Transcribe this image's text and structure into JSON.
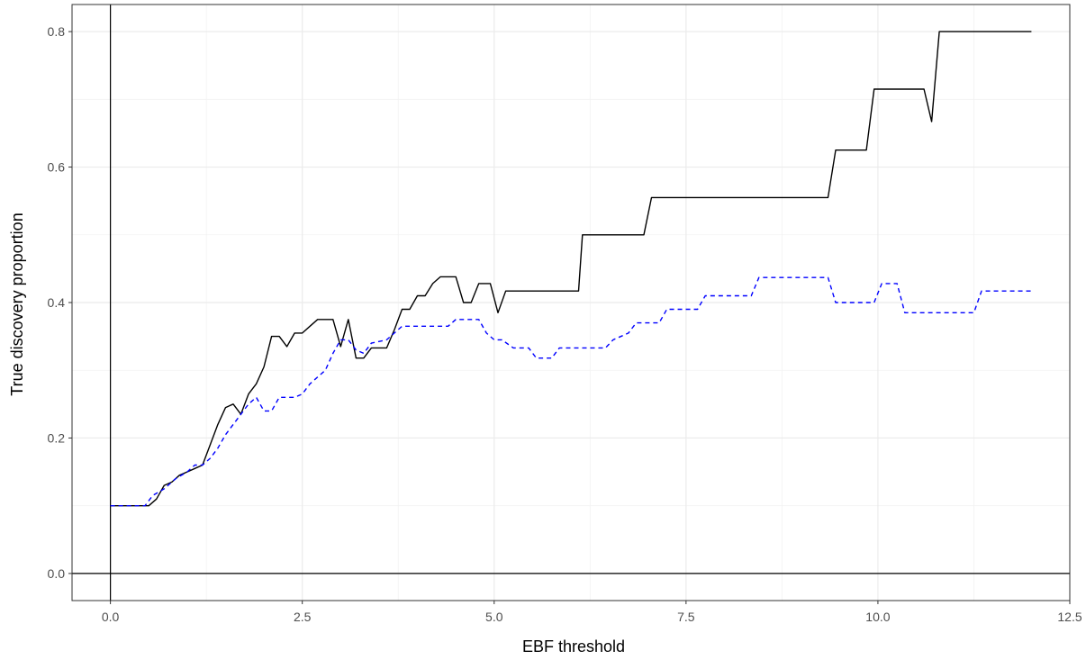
{
  "chart_data": {
    "type": "line",
    "xlabel": "EBF threshold",
    "ylabel": "True discovery proportion",
    "xlim": [
      -0.5,
      12.5
    ],
    "ylim": [
      -0.04,
      0.84
    ],
    "x_ticks": [
      0,
      2.5,
      5,
      7.5,
      10,
      12.5
    ],
    "x_tick_labels": [
      "0.0",
      "2.5",
      "5.0",
      "7.5",
      "10.0",
      "12.5"
    ],
    "y_ticks": [
      0,
      0.2,
      0.4,
      0.6,
      0.8
    ],
    "y_tick_labels": [
      "0.0",
      "0.2",
      "0.4",
      "0.6",
      "0.8"
    ],
    "grid": true,
    "reference_lines": {
      "vertical_x": 0,
      "horizontal_y": 0
    },
    "series": [
      {
        "color": "#000000",
        "dash": "solid",
        "points": [
          [
            0,
            0.1
          ],
          [
            0.5,
            0.1
          ],
          [
            0.6,
            0.11
          ],
          [
            0.7,
            0.13
          ],
          [
            0.8,
            0.135
          ],
          [
            0.9,
            0.145
          ],
          [
            1.0,
            0.15
          ],
          [
            1.1,
            0.155
          ],
          [
            1.2,
            0.16
          ],
          [
            1.3,
            0.19
          ],
          [
            1.4,
            0.22
          ],
          [
            1.5,
            0.245
          ],
          [
            1.6,
            0.25
          ],
          [
            1.7,
            0.235
          ],
          [
            1.8,
            0.265
          ],
          [
            1.9,
            0.28
          ],
          [
            2.0,
            0.305
          ],
          [
            2.1,
            0.35
          ],
          [
            2.2,
            0.35
          ],
          [
            2.3,
            0.335
          ],
          [
            2.4,
            0.355
          ],
          [
            2.5,
            0.355
          ],
          [
            2.6,
            0.365
          ],
          [
            2.7,
            0.375
          ],
          [
            2.9,
            0.375
          ],
          [
            3.0,
            0.335
          ],
          [
            3.1,
            0.375
          ],
          [
            3.2,
            0.318
          ],
          [
            3.3,
            0.318
          ],
          [
            3.4,
            0.333
          ],
          [
            3.6,
            0.333
          ],
          [
            3.7,
            0.36
          ],
          [
            3.8,
            0.39
          ],
          [
            3.9,
            0.39
          ],
          [
            4.0,
            0.41
          ],
          [
            4.1,
            0.41
          ],
          [
            4.2,
            0.428
          ],
          [
            4.3,
            0.438
          ],
          [
            4.5,
            0.438
          ],
          [
            4.6,
            0.4
          ],
          [
            4.7,
            0.4
          ],
          [
            4.8,
            0.428
          ],
          [
            4.95,
            0.428
          ],
          [
            5.05,
            0.385
          ],
          [
            5.15,
            0.417
          ],
          [
            6.1,
            0.417
          ],
          [
            6.15,
            0.5
          ],
          [
            6.95,
            0.5
          ],
          [
            7.05,
            0.555
          ],
          [
            9.35,
            0.555
          ],
          [
            9.45,
            0.625
          ],
          [
            9.85,
            0.625
          ],
          [
            9.95,
            0.715
          ],
          [
            10.6,
            0.715
          ],
          [
            10.7,
            0.667
          ],
          [
            10.8,
            0.8
          ],
          [
            12.0,
            0.8
          ]
        ]
      },
      {
        "color": "#0000ff",
        "dash": "dashed",
        "points": [
          [
            0,
            0.1
          ],
          [
            0.45,
            0.1
          ],
          [
            0.55,
            0.115
          ],
          [
            0.7,
            0.125
          ],
          [
            0.85,
            0.14
          ],
          [
            1.0,
            0.15
          ],
          [
            1.1,
            0.16
          ],
          [
            1.2,
            0.16
          ],
          [
            1.3,
            0.17
          ],
          [
            1.4,
            0.185
          ],
          [
            1.5,
            0.205
          ],
          [
            1.6,
            0.22
          ],
          [
            1.8,
            0.25
          ],
          [
            1.9,
            0.26
          ],
          [
            2.0,
            0.24
          ],
          [
            2.1,
            0.24
          ],
          [
            2.2,
            0.26
          ],
          [
            2.4,
            0.26
          ],
          [
            2.5,
            0.265
          ],
          [
            2.6,
            0.28
          ],
          [
            2.8,
            0.3
          ],
          [
            2.9,
            0.325
          ],
          [
            3.0,
            0.345
          ],
          [
            3.1,
            0.345
          ],
          [
            3.2,
            0.33
          ],
          [
            3.3,
            0.325
          ],
          [
            3.4,
            0.34
          ],
          [
            3.6,
            0.345
          ],
          [
            3.8,
            0.365
          ],
          [
            4.4,
            0.365
          ],
          [
            4.5,
            0.375
          ],
          [
            4.8,
            0.375
          ],
          [
            4.9,
            0.355
          ],
          [
            5.0,
            0.345
          ],
          [
            5.1,
            0.345
          ],
          [
            5.25,
            0.333
          ],
          [
            5.45,
            0.333
          ],
          [
            5.55,
            0.318
          ],
          [
            5.75,
            0.318
          ],
          [
            5.85,
            0.333
          ],
          [
            6.45,
            0.333
          ],
          [
            6.55,
            0.345
          ],
          [
            6.75,
            0.355
          ],
          [
            6.85,
            0.37
          ],
          [
            7.15,
            0.37
          ],
          [
            7.25,
            0.39
          ],
          [
            7.65,
            0.39
          ],
          [
            7.75,
            0.41
          ],
          [
            8.35,
            0.41
          ],
          [
            8.45,
            0.437
          ],
          [
            9.35,
            0.437
          ],
          [
            9.45,
            0.4
          ],
          [
            9.95,
            0.4
          ],
          [
            10.05,
            0.428
          ],
          [
            10.25,
            0.428
          ],
          [
            10.35,
            0.385
          ],
          [
            11.25,
            0.385
          ],
          [
            11.35,
            0.417
          ],
          [
            12.0,
            0.417
          ]
        ]
      }
    ]
  }
}
